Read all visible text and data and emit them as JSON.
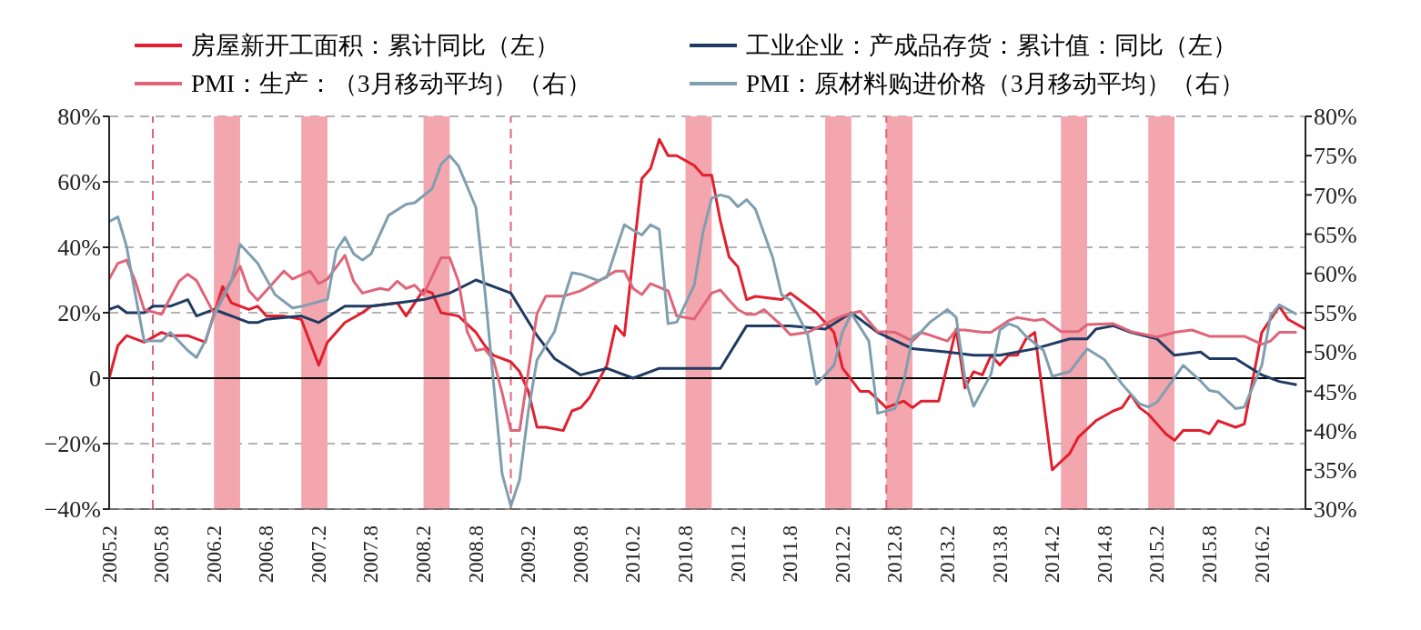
{
  "chart_data": {
    "type": "line",
    "xlim": [
      "2005-02",
      "2016-07"
    ],
    "xticks": [
      {
        "value": "2005-02",
        "label": "2005.2"
      },
      {
        "value": "2005-08",
        "label": "2005.8"
      },
      {
        "value": "2006-02",
        "label": "2006.2"
      },
      {
        "value": "2006-08",
        "label": "2006.8"
      },
      {
        "value": "2007-02",
        "label": "2007.2"
      },
      {
        "value": "2007-08",
        "label": "2007.8"
      },
      {
        "value": "2008-02",
        "label": "2008.2"
      },
      {
        "value": "2008-08",
        "label": "2008.8"
      },
      {
        "value": "2009-02",
        "label": "2009.2"
      },
      {
        "value": "2009-08",
        "label": "2009.8"
      },
      {
        "value": "2010-02",
        "label": "2010.2"
      },
      {
        "value": "2010-08",
        "label": "2010.8"
      },
      {
        "value": "2011-02",
        "label": "2011.2"
      },
      {
        "value": "2011-08",
        "label": "2011.8"
      },
      {
        "value": "2012-02",
        "label": "2012.2"
      },
      {
        "value": "2012-08",
        "label": "2012.8"
      },
      {
        "value": "2013-02",
        "label": "2013.2"
      },
      {
        "value": "2013-08",
        "label": "2013.8"
      },
      {
        "value": "2014-02",
        "label": "2014.2"
      },
      {
        "value": "2014-08",
        "label": "2014.8"
      },
      {
        "value": "2015-02",
        "label": "2015.2"
      },
      {
        "value": "2015-08",
        "label": "2015.8"
      },
      {
        "value": "2016-02",
        "label": "2016.2"
      }
    ],
    "ylim": [
      -40,
      80
    ],
    "yticks": [
      {
        "value": -40,
        "label": "−40%"
      },
      {
        "value": -20,
        "label": "−20%"
      },
      0,
      {
        "value": 20,
        "label": "20%"
      },
      {
        "value": 40,
        "label": "40%"
      },
      {
        "value": 60,
        "label": "60%"
      },
      {
        "value": 80,
        "label": "80%"
      }
    ],
    "y2lim": [
      30,
      80
    ],
    "y2ticks": [
      {
        "value": 30,
        "label": "30%"
      },
      {
        "value": 35,
        "label": "35%"
      },
      {
        "value": 40,
        "label": "40%"
      },
      {
        "value": 45,
        "label": "45%"
      },
      {
        "value": 50,
        "label": "50%"
      },
      {
        "value": 55,
        "label": "55%"
      },
      {
        "value": 60,
        "label": "60%"
      },
      {
        "value": 65,
        "label": "65%"
      },
      {
        "value": 70,
        "label": "70%"
      },
      {
        "value": 75,
        "label": "75%"
      },
      {
        "value": 80,
        "label": "80%"
      }
    ],
    "grid": "y",
    "legend": "top",
    "marker": "none",
    "series": [
      {
        "name": "房屋新开工面积：累计同比（左）",
        "color": "#e0202e",
        "x": [
          "2005-02",
          "2005-03",
          "2005-04",
          "2005-06",
          "2005-08",
          "2005-09",
          "2005-11",
          "2006-01",
          "2006-03",
          "2006-04",
          "2006-06",
          "2006-07",
          "2006-08",
          "2006-10",
          "2006-12",
          "2007-01",
          "2007-02",
          "2007-03",
          "2007-05",
          "2007-07",
          "2007-08",
          "2007-11",
          "2007-12",
          "2008-02",
          "2008-03",
          "2008-04",
          "2008-06",
          "2008-08",
          "2008-09",
          "2008-10",
          "2008-12",
          "2009-01",
          "2009-02",
          "2009-03",
          "2009-04",
          "2009-06",
          "2009-07",
          "2009-08",
          "2009-09",
          "2009-10",
          "2009-11",
          "2009-12",
          "2010-01",
          "2010-02",
          "2010-03",
          "2010-04",
          "2010-05",
          "2010-06",
          "2010-07",
          "2010-09",
          "2010-10",
          "2010-11",
          "2010-12",
          "2011-01",
          "2011-02",
          "2011-03",
          "2011-04",
          "2011-07",
          "2011-08",
          "2011-11",
          "2012-01",
          "2012-02",
          "2012-04",
          "2012-05",
          "2012-07",
          "2012-09",
          "2012-10",
          "2012-11",
          "2013-01",
          "2013-03",
          "2013-04",
          "2013-05",
          "2013-06",
          "2013-07",
          "2013-08",
          "2013-09",
          "2013-10",
          "2013-11",
          "2013-12",
          "2014-02",
          "2014-04",
          "2014-05",
          "2014-07",
          "2014-09",
          "2014-10",
          "2014-11",
          "2014-12",
          "2015-01",
          "2015-03",
          "2015-04",
          "2015-05",
          "2015-07",
          "2015-08",
          "2015-09",
          "2015-11",
          "2015-12",
          "2016-02",
          "2016-04",
          "2016-05",
          "2016-07"
        ],
        "values": [
          0,
          10,
          13,
          11,
          14,
          13,
          13,
          11,
          28,
          23,
          21,
          22,
          19,
          19,
          18,
          11,
          4,
          11,
          17,
          20,
          22,
          23,
          19,
          27,
          26,
          20,
          19,
          14,
          10,
          7,
          5,
          2,
          -4,
          -15,
          -15,
          -16,
          -10,
          -9,
          -6,
          -1,
          4,
          16,
          13,
          37,
          61,
          64,
          73,
          68,
          68,
          65,
          62,
          62,
          48,
          37,
          34,
          24,
          25,
          24,
          26,
          20,
          14,
          3,
          -4,
          -4,
          -9,
          -7,
          -9,
          -7,
          -7,
          15,
          -3,
          2,
          1,
          7,
          4,
          7,
          7,
          12,
          14,
          -28,
          -23,
          -18,
          -13,
          -10,
          -9,
          -5,
          -9,
          -11,
          -17,
          -19,
          -16,
          -16,
          -17,
          -13,
          -15,
          -14,
          14,
          22,
          18,
          15
        ]
      },
      {
        "name": "工业企业：产成品存货：累计值：同比（左）",
        "color": "#1f3b63",
        "x": [
          "2005-02",
          "2005-03",
          "2005-04",
          "2005-06",
          "2005-07",
          "2005-09",
          "2005-11",
          "2005-12",
          "2006-02",
          "2006-03",
          "2006-06",
          "2006-07",
          "2006-08",
          "2006-12",
          "2007-02",
          "2007-05",
          "2007-08",
          "2007-11",
          "2008-02",
          "2008-05",
          "2008-08",
          "2008-12",
          "2009-03",
          "2009-05",
          "2009-08",
          "2009-11",
          "2010-02",
          "2010-05",
          "2010-08",
          "2010-12",
          "2011-03",
          "2011-08",
          "2011-12",
          "2012-03",
          "2012-06",
          "2012-10",
          "2013-02",
          "2013-05",
          "2013-08",
          "2013-12",
          "2014-04",
          "2014-06",
          "2014-07",
          "2014-09",
          "2014-11",
          "2015-02",
          "2015-04",
          "2015-07",
          "2015-08",
          "2015-11",
          "2016-02",
          "2016-04",
          "2016-06"
        ],
        "values": [
          21,
          22,
          20,
          20,
          22,
          22,
          24,
          19,
          21,
          20,
          17,
          17,
          18,
          19,
          17,
          22,
          22,
          23,
          24,
          26,
          30,
          26,
          13,
          6,
          1,
          3,
          0,
          3,
          3,
          3,
          16,
          16,
          15,
          20,
          14,
          9,
          8,
          7,
          7,
          9,
          12,
          12,
          15,
          16,
          14,
          12,
          7,
          8,
          6,
          6,
          1,
          -1,
          -2
        ]
      },
      {
        "name": "PMI：生产：（3月移动平均）（右）",
        "color": "#e06478",
        "axis": "y2",
        "x": [
          "2005-02",
          "2005-03",
          "2005-04",
          "2005-05",
          "2005-06",
          "2005-08",
          "2005-10",
          "2005-11",
          "2005-12",
          "2006-02",
          "2006-03",
          "2006-05",
          "2006-06",
          "2006-07",
          "2006-10",
          "2006-11",
          "2007-01",
          "2007-02",
          "2007-03",
          "2007-05",
          "2007-06",
          "2007-07",
          "2007-09",
          "2007-10",
          "2007-11",
          "2007-12",
          "2008-01",
          "2008-02",
          "2008-04",
          "2008-05",
          "2008-06",
          "2008-07",
          "2008-08",
          "2008-09",
          "2008-10",
          "2008-11",
          "2008-12",
          "2009-01",
          "2009-02",
          "2009-03",
          "2009-04",
          "2009-06",
          "2009-08",
          "2009-10",
          "2009-12",
          "2010-01",
          "2010-02",
          "2010-03",
          "2010-04",
          "2010-06",
          "2010-07",
          "2010-09",
          "2010-11",
          "2010-12",
          "2011-01",
          "2011-02",
          "2011-03",
          "2011-04",
          "2011-05",
          "2011-07",
          "2011-08",
          "2011-10",
          "2011-12",
          "2012-02",
          "2012-04",
          "2012-06",
          "2012-08",
          "2012-10",
          "2012-11",
          "2013-02",
          "2013-03",
          "2013-04",
          "2013-06",
          "2013-07",
          "2013-09",
          "2013-10",
          "2013-12",
          "2014-01",
          "2014-03",
          "2014-05",
          "2014-06",
          "2014-09",
          "2014-11",
          "2015-02",
          "2015-04",
          "2015-06",
          "2015-08",
          "2015-10",
          "2015-12",
          "2016-02",
          "2016-03",
          "2016-04",
          "2016-06"
        ],
        "values": [
          59.3,
          61.3,
          61.7,
          59.0,
          55.4,
          54.8,
          59.0,
          59.9,
          59.1,
          54.9,
          57.3,
          60.9,
          57.8,
          56.6,
          60.3,
          59.3,
          60.3,
          58.7,
          59.3,
          62.3,
          59.0,
          57.5,
          58.1,
          57.9,
          59.0,
          58.1,
          58.5,
          57.3,
          62.0,
          62.0,
          59.0,
          52.6,
          50.2,
          50.4,
          49.0,
          44.8,
          40.0,
          40.0,
          47.5,
          54.9,
          57.1,
          57.1,
          57.8,
          59.0,
          60.3,
          60.3,
          58.1,
          57.3,
          58.7,
          57.8,
          54.6,
          54.2,
          57.5,
          57.9,
          56.6,
          55.4,
          54.8,
          54.8,
          55.4,
          53.4,
          52.2,
          52.5,
          53.6,
          54.6,
          55.2,
          52.6,
          52.5,
          51.4,
          52.5,
          51.4,
          52.8,
          52.8,
          52.5,
          52.5,
          54.0,
          54.4,
          54.0,
          54.2,
          52.6,
          52.6,
          53.5,
          53.6,
          52.6,
          51.9,
          52.5,
          52.8,
          52.0,
          52.0,
          52.0,
          51.0,
          51.4,
          52.5,
          52.5
        ]
      },
      {
        "name": "PMI：原材料购进价格（3月移动平均）（右）",
        "color": "#7f9fb0",
        "axis": "y2",
        "x": [
          "2005-02",
          "2005-03",
          "2005-04",
          "2005-05",
          "2005-06",
          "2005-08",
          "2005-09",
          "2005-11",
          "2005-12",
          "2006-01",
          "2006-02",
          "2006-04",
          "2006-05",
          "2006-07",
          "2006-09",
          "2006-11",
          "2006-12",
          "2007-03",
          "2007-04",
          "2007-05",
          "2007-06",
          "2007-07",
          "2007-08",
          "2007-10",
          "2007-12",
          "2008-01",
          "2008-03",
          "2008-04",
          "2008-05",
          "2008-06",
          "2008-08",
          "2008-09",
          "2008-10",
          "2008-11",
          "2008-12",
          "2009-01",
          "2009-02",
          "2009-03",
          "2009-05",
          "2009-06",
          "2009-07",
          "2009-08",
          "2009-10",
          "2009-11",
          "2009-12",
          "2010-01",
          "2010-02",
          "2010-03",
          "2010-04",
          "2010-05",
          "2010-06",
          "2010-07",
          "2010-09",
          "2010-10",
          "2010-11",
          "2010-12",
          "2011-01",
          "2011-02",
          "2011-03",
          "2011-04",
          "2011-06",
          "2011-07",
          "2011-08",
          "2011-10",
          "2011-11",
          "2012-01",
          "2012-02",
          "2012-03",
          "2012-05",
          "2012-06",
          "2012-08",
          "2012-09",
          "2012-10",
          "2012-11",
          "2012-12",
          "2013-02",
          "2013-03",
          "2013-04",
          "2013-05",
          "2013-07",
          "2013-08",
          "2013-09",
          "2013-10",
          "2013-11",
          "2014-01",
          "2014-02",
          "2014-04",
          "2014-06",
          "2014-08",
          "2014-10",
          "2014-12",
          "2015-01",
          "2015-02",
          "2015-04",
          "2015-05",
          "2015-07",
          "2015-08",
          "2015-09",
          "2015-11",
          "2015-12",
          "2016-02",
          "2016-03",
          "2016-04",
          "2016-06"
        ],
        "values": [
          66.6,
          67.2,
          63.4,
          57.3,
          51.4,
          51.4,
          52.5,
          50.2,
          49.3,
          51.4,
          54.6,
          59.0,
          63.7,
          61.3,
          57.3,
          55.6,
          55.8,
          56.7,
          62.9,
          64.6,
          62.5,
          61.7,
          62.5,
          67.4,
          68.8,
          69.0,
          70.8,
          73.9,
          75.0,
          73.7,
          68.4,
          58.1,
          46.3,
          34.5,
          30.4,
          33.7,
          42.4,
          49.0,
          52.6,
          56.6,
          60.1,
          59.9,
          59.1,
          59.5,
          62.9,
          66.2,
          65.5,
          64.9,
          66.2,
          65.6,
          53.6,
          53.8,
          58.5,
          65.2,
          69.6,
          70.0,
          69.7,
          68.5,
          69.4,
          68.2,
          62.0,
          57.3,
          56.6,
          52.2,
          45.9,
          48.3,
          52.6,
          54.9,
          51.4,
          42.2,
          42.8,
          46.3,
          51.9,
          52.6,
          53.8,
          55.4,
          54.4,
          46.7,
          43.1,
          47.2,
          52.8,
          53.6,
          53.2,
          52.0,
          50.2,
          46.9,
          47.5,
          50.4,
          49.0,
          45.9,
          43.4,
          43.0,
          43.6,
          46.7,
          48.3,
          46.3,
          45.1,
          44.9,
          42.8,
          43.0,
          48.3,
          54.6,
          56.0,
          54.8
        ]
      }
    ],
    "ref_lines": [
      {
        "axis": "x",
        "value": "2005-07",
        "color": "#e06478",
        "line_style": "dashed"
      },
      {
        "axis": "x",
        "value": "2008-12",
        "color": "#e06478",
        "line_style": "dashed"
      },
      {
        "axis": "x",
        "value": "2012-07",
        "color": "#e06478",
        "line_style": "dashed"
      },
      {
        "axis": "y",
        "value": 0,
        "color": "#000000",
        "line_style": "solid"
      }
    ],
    "bands": [
      {
        "axis": "x",
        "from": "2006-02",
        "to": "2006-05",
        "color": "#f4a6ae"
      },
      {
        "axis": "x",
        "from": "2006-12",
        "to": "2007-03",
        "color": "#f4a6ae"
      },
      {
        "axis": "x",
        "from": "2008-02",
        "to": "2008-05",
        "color": "#f4a6ae"
      },
      {
        "axis": "x",
        "from": "2010-08",
        "to": "2010-11",
        "color": "#f4a6ae"
      },
      {
        "axis": "x",
        "from": "2011-12",
        "to": "2012-03",
        "color": "#f4a6ae"
      },
      {
        "axis": "x",
        "from": "2012-07",
        "to": "2012-10",
        "color": "#f4a6ae"
      },
      {
        "axis": "x",
        "from": "2014-03",
        "to": "2014-06",
        "color": "#f4a6ae"
      },
      {
        "axis": "x",
        "from": "2015-01",
        "to": "2015-04",
        "color": "#f4a6ae"
      }
    ]
  }
}
